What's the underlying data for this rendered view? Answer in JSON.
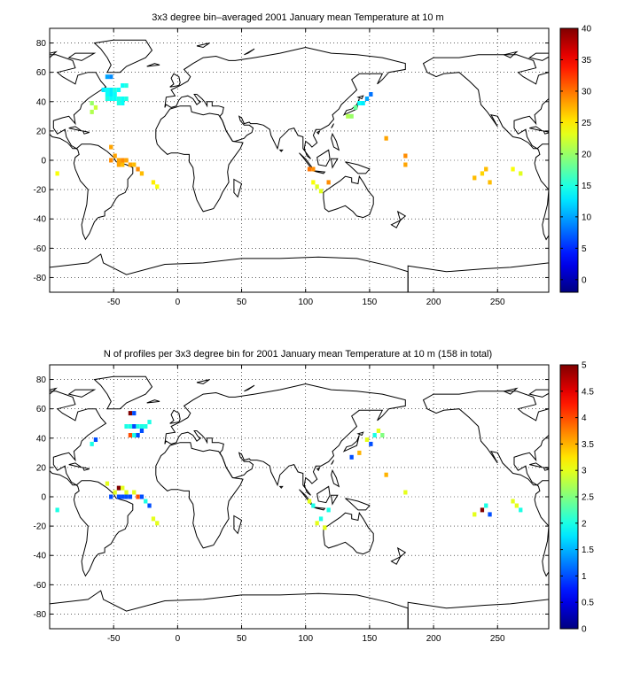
{
  "panels": [
    {
      "title": "3x3 degree bin–averaged 2001 January mean Temperature at 10 m",
      "colorbar": {
        "min": -2,
        "max": 40,
        "ticks": [
          0,
          5,
          10,
          15,
          20,
          25,
          30,
          35,
          40
        ]
      },
      "cells": [
        [
          -55,
          57,
          10
        ],
        [
          -52,
          57,
          9
        ],
        [
          -58,
          48,
          13
        ],
        [
          -55,
          48,
          14
        ],
        [
          -52,
          48,
          13
        ],
        [
          -49,
          48,
          15
        ],
        [
          -46,
          48,
          14
        ],
        [
          -55,
          45,
          14
        ],
        [
          -52,
          45,
          13
        ],
        [
          -49,
          45,
          14
        ],
        [
          -55,
          42,
          15
        ],
        [
          -52,
          42,
          14
        ],
        [
          -49,
          42,
          14
        ],
        [
          -46,
          42,
          15
        ],
        [
          -43,
          42,
          14
        ],
        [
          -40,
          42,
          15
        ],
        [
          -46,
          39,
          15
        ],
        [
          -43,
          39,
          14
        ],
        [
          -43,
          51,
          14
        ],
        [
          -40,
          51,
          15
        ],
        [
          -64,
          36,
          22
        ],
        [
          -67,
          39,
          20
        ],
        [
          -67,
          33,
          21
        ],
        [
          -52,
          9,
          28
        ],
        [
          -49,
          3,
          28
        ],
        [
          -52,
          0,
          29
        ],
        [
          -46,
          0,
          28
        ],
        [
          -43,
          0,
          29
        ],
        [
          -40,
          0,
          28
        ],
        [
          -46,
          -3,
          28
        ],
        [
          -43,
          -3,
          27
        ],
        [
          -37,
          -3,
          28
        ],
        [
          -34,
          -3,
          27
        ],
        [
          -31,
          -6,
          29
        ],
        [
          -28,
          -9,
          27
        ],
        [
          -19,
          -15,
          25
        ],
        [
          -16,
          -18,
          24
        ],
        [
          -94,
          -9,
          24
        ],
        [
          103,
          -6,
          30
        ],
        [
          106,
          -6,
          29
        ],
        [
          109,
          -18,
          23
        ],
        [
          106,
          -15,
          24
        ],
        [
          112,
          -21,
          23
        ],
        [
          118,
          -15,
          29
        ],
        [
          133,
          30,
          21
        ],
        [
          139,
          36,
          18
        ],
        [
          142,
          39,
          14
        ],
        [
          145,
          39,
          13
        ],
        [
          148,
          42,
          10
        ],
        [
          151,
          45,
          8
        ],
        [
          136,
          30,
          20
        ],
        [
          163,
          15,
          28
        ],
        [
          178,
          3,
          29
        ],
        [
          178,
          -3,
          28
        ],
        [
          232,
          -12,
          27
        ],
        [
          238,
          -9,
          26
        ],
        [
          241,
          -6,
          27
        ],
        [
          244,
          -15,
          27
        ],
        [
          262,
          -6,
          24
        ],
        [
          268,
          -9,
          23
        ]
      ]
    },
    {
      "title": "N of profiles per 3x3 degree bin for 2001 January mean Temperature at 10 m (158 in total)",
      "colorbar": {
        "min": 0,
        "max": 5,
        "ticks": [
          0,
          0.5,
          1,
          1.5,
          2,
          2.5,
          3,
          3.5,
          4,
          4.5,
          5
        ]
      },
      "cells": [
        [
          -37,
          57,
          5
        ],
        [
          -34,
          57,
          1
        ],
        [
          -40,
          48,
          2
        ],
        [
          -37,
          48,
          2
        ],
        [
          -34,
          48,
          1
        ],
        [
          -31,
          48,
          2
        ],
        [
          -28,
          48,
          2
        ],
        [
          -37,
          42,
          4
        ],
        [
          -34,
          42,
          2
        ],
        [
          -31,
          42,
          1
        ],
        [
          -28,
          45,
          1
        ],
        [
          -25,
          48,
          2
        ],
        [
          -22,
          51,
          2
        ],
        [
          -64,
          39,
          1
        ],
        [
          -67,
          36,
          2
        ],
        [
          -55,
          9,
          3
        ],
        [
          -49,
          3,
          3
        ],
        [
          -52,
          0,
          1
        ],
        [
          -46,
          6,
          5
        ],
        [
          -43,
          6,
          3
        ],
        [
          -40,
          3,
          3
        ],
        [
          -34,
          3,
          3
        ],
        [
          -46,
          0,
          1
        ],
        [
          -43,
          0,
          1
        ],
        [
          -40,
          0,
          1
        ],
        [
          -37,
          0,
          1
        ],
        [
          -31,
          0,
          4
        ],
        [
          -28,
          0,
          1
        ],
        [
          -25,
          -3,
          2
        ],
        [
          -22,
          -6,
          1
        ],
        [
          -19,
          -15,
          3
        ],
        [
          -16,
          -18,
          3
        ],
        [
          -94,
          -9,
          2
        ],
        [
          103,
          -3,
          3
        ],
        [
          106,
          -6,
          2
        ],
        [
          109,
          -18,
          3
        ],
        [
          112,
          -15,
          2
        ],
        [
          115,
          -21,
          3
        ],
        [
          118,
          -9,
          2
        ],
        [
          136,
          27,
          1
        ],
        [
          142,
          30,
          3.5
        ],
        [
          148,
          39,
          3
        ],
        [
          151,
          36,
          1
        ],
        [
          154,
          42,
          2
        ],
        [
          157,
          45,
          3
        ],
        [
          160,
          42,
          2.5
        ],
        [
          163,
          15,
          3.5
        ],
        [
          178,
          3,
          3
        ],
        [
          232,
          -12,
          3
        ],
        [
          238,
          -9,
          5
        ],
        [
          241,
          -6,
          2
        ],
        [
          244,
          -12,
          1
        ],
        [
          265,
          -6,
          3
        ],
        [
          268,
          -9,
          2
        ],
        [
          262,
          -3,
          3
        ]
      ]
    }
  ],
  "axes": {
    "xticks": [
      -50,
      0,
      50,
      100,
      150,
      200,
      250
    ],
    "yticks": [
      -80,
      -60,
      -40,
      -20,
      0,
      20,
      40,
      60,
      80
    ],
    "xlim": [
      -100,
      290
    ],
    "ylim": [
      -90,
      90
    ]
  }
}
